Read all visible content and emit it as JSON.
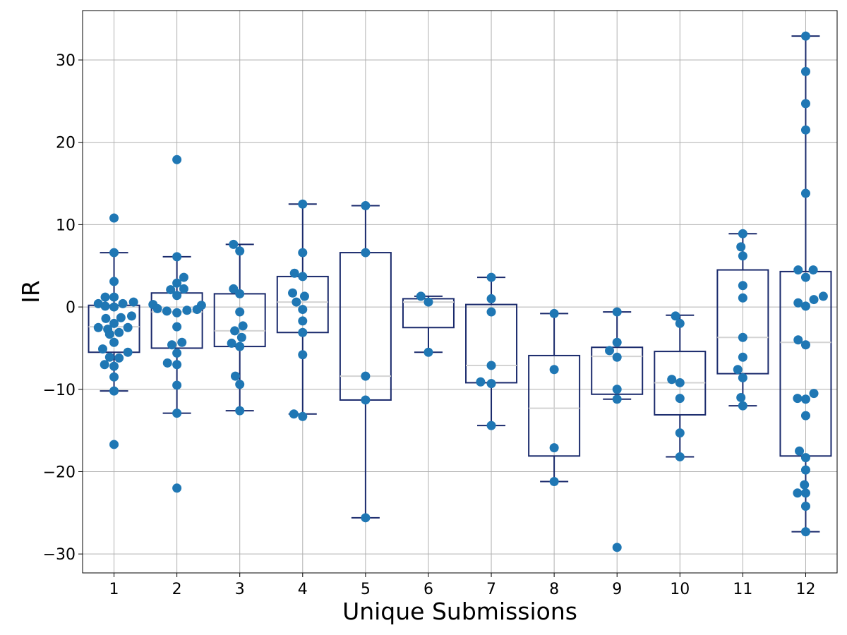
{
  "chart_data": {
    "type": "box",
    "xlabel": "Unique Submissions",
    "ylabel": "IR",
    "categories": [
      "1",
      "2",
      "3",
      "4",
      "5",
      "6",
      "7",
      "8",
      "9",
      "10",
      "11",
      "12"
    ],
    "ylim": [
      -32.3,
      36.0
    ],
    "yticks": [
      -30,
      -20,
      -10,
      0,
      10,
      20,
      30
    ],
    "ytick_labels": [
      "−30",
      "−20",
      "−10",
      "0",
      "10",
      "20",
      "30"
    ],
    "grid": true,
    "colors": {
      "box": "#1a2a6c",
      "median": "#d3d3d3",
      "points": "#1f77b4",
      "grid": "#b0b0b0"
    },
    "boxes": [
      {
        "q1": -5.5,
        "median": -2.4,
        "q3": 0.2,
        "whisker_low": -10.2,
        "whisker_high": 6.6
      },
      {
        "q1": -5.0,
        "median": -0.6,
        "q3": 1.7,
        "whisker_low": -12.9,
        "whisker_high": 6.1
      },
      {
        "q1": -4.8,
        "median": -2.9,
        "q3": 1.6,
        "whisker_low": -12.6,
        "whisker_high": 7.6
      },
      {
        "q1": -3.1,
        "median": 0.6,
        "q3": 3.7,
        "whisker_low": -13.0,
        "whisker_high": 12.5
      },
      {
        "q1": -11.3,
        "median": -8.4,
        "q3": 6.6,
        "whisker_low": -25.6,
        "whisker_high": 12.3
      },
      {
        "q1": -2.5,
        "median": 0.6,
        "q3": 1.0,
        "whisker_low": -5.5,
        "whisker_high": 1.3
      },
      {
        "q1": -9.2,
        "median": -7.1,
        "q3": 0.3,
        "whisker_low": -14.4,
        "whisker_high": 3.6
      },
      {
        "q1": -18.1,
        "median": -12.3,
        "q3": -5.9,
        "whisker_low": -21.2,
        "whisker_high": -0.8
      },
      {
        "q1": -10.6,
        "median": -6.0,
        "q3": -4.9,
        "whisker_low": -11.2,
        "whisker_high": -0.6
      },
      {
        "q1": -13.1,
        "median": -9.2,
        "q3": -5.4,
        "whisker_low": -18.2,
        "whisker_high": -1.0
      },
      {
        "q1": -8.1,
        "median": -3.7,
        "q3": 4.5,
        "whisker_low": -12.0,
        "whisker_high": 8.9
      },
      {
        "q1": -18.1,
        "median": -4.3,
        "q3": 4.3,
        "whisker_low": -27.3,
        "whisker_high": 32.9
      }
    ],
    "points": [
      [
        {
          "x": 1,
          "y": 10.8
        },
        {
          "x": 1,
          "y": 6.6
        },
        {
          "x": 1,
          "y": 3.1
        },
        {
          "x": 0.86,
          "y": 1.2
        },
        {
          "x": 1,
          "y": 1.2
        },
        {
          "x": 0.75,
          "y": 0.4
        },
        {
          "x": 1.14,
          "y": 0.4
        },
        {
          "x": 1.31,
          "y": 0.6
        },
        {
          "x": 0.86,
          "y": 0.1
        },
        {
          "x": 1,
          "y": 0.0
        },
        {
          "x": 0.87,
          "y": -1.4
        },
        {
          "x": 1.11,
          "y": -1.3
        },
        {
          "x": 1.28,
          "y": -1.1
        },
        {
          "x": 1,
          "y": -2.0
        },
        {
          "x": 0.75,
          "y": -2.5
        },
        {
          "x": 0.9,
          "y": -2.7
        },
        {
          "x": 1.22,
          "y": -2.5
        },
        {
          "x": 0.93,
          "y": -3.3
        },
        {
          "x": 1.08,
          "y": -3.1
        },
        {
          "x": 1,
          "y": -4.3
        },
        {
          "x": 0.82,
          "y": -5.1
        },
        {
          "x": 1.22,
          "y": -5.5
        },
        {
          "x": 0.93,
          "y": -6.1
        },
        {
          "x": 1.08,
          "y": -6.2
        },
        {
          "x": 0.85,
          "y": -7.0
        },
        {
          "x": 1,
          "y": -7.2
        },
        {
          "x": 1,
          "y": -8.5
        },
        {
          "x": 1,
          "y": -10.2
        },
        {
          "x": 1,
          "y": -16.7
        }
      ],
      [
        {
          "x": 2,
          "y": 17.9
        },
        {
          "x": 2,
          "y": 6.1
        },
        {
          "x": 2.11,
          "y": 3.6
        },
        {
          "x": 2,
          "y": 2.9
        },
        {
          "x": 1.9,
          "y": 2.1
        },
        {
          "x": 2.11,
          "y": 2.2
        },
        {
          "x": 2,
          "y": 1.4
        },
        {
          "x": 1.62,
          "y": 0.3
        },
        {
          "x": 2.39,
          "y": 0.2
        },
        {
          "x": 1.69,
          "y": -0.2
        },
        {
          "x": 2.32,
          "y": -0.3
        },
        {
          "x": 1.84,
          "y": -0.5
        },
        {
          "x": 2.16,
          "y": -0.4
        },
        {
          "x": 2,
          "y": -0.7
        },
        {
          "x": 2,
          "y": -2.4
        },
        {
          "x": 1.92,
          "y": -4.6
        },
        {
          "x": 2.08,
          "y": -4.3
        },
        {
          "x": 2,
          "y": -5.6
        },
        {
          "x": 1.85,
          "y": -6.8
        },
        {
          "x": 2,
          "y": -7.0
        },
        {
          "x": 2,
          "y": -9.5
        },
        {
          "x": 2,
          "y": -12.9
        },
        {
          "x": 2,
          "y": -22.0
        }
      ],
      [
        {
          "x": 2.9,
          "y": 7.6
        },
        {
          "x": 3,
          "y": 6.8
        },
        {
          "x": 2.9,
          "y": 2.2
        },
        {
          "x": 3,
          "y": 1.6
        },
        {
          "x": 3,
          "y": -0.6
        },
        {
          "x": 3.05,
          "y": -2.3
        },
        {
          "x": 2.92,
          "y": -2.9
        },
        {
          "x": 3.03,
          "y": -3.7
        },
        {
          "x": 2.87,
          "y": -4.4
        },
        {
          "x": 3,
          "y": -4.8
        },
        {
          "x": 2.93,
          "y": -8.4
        },
        {
          "x": 3,
          "y": -9.4
        },
        {
          "x": 3,
          "y": -12.6
        }
      ],
      [
        {
          "x": 4,
          "y": 12.5
        },
        {
          "x": 4,
          "y": 6.6
        },
        {
          "x": 3.87,
          "y": 4.1
        },
        {
          "x": 4,
          "y": 3.7
        },
        {
          "x": 3.84,
          "y": 1.7
        },
        {
          "x": 4.03,
          "y": 1.3
        },
        {
          "x": 3.9,
          "y": 0.6
        },
        {
          "x": 4,
          "y": -0.3
        },
        {
          "x": 4,
          "y": -1.7
        },
        {
          "x": 4,
          "y": -3.1
        },
        {
          "x": 4,
          "y": -5.8
        },
        {
          "x": 3.86,
          "y": -13.0
        },
        {
          "x": 4,
          "y": -13.3
        }
      ],
      [
        {
          "x": 5,
          "y": 12.3
        },
        {
          "x": 5,
          "y": 6.6
        },
        {
          "x": 5,
          "y": -8.4
        },
        {
          "x": 5,
          "y": -11.3
        },
        {
          "x": 5,
          "y": -25.6
        }
      ],
      [
        {
          "x": 5.88,
          "y": 1.3
        },
        {
          "x": 6,
          "y": 0.6
        },
        {
          "x": 6,
          "y": -5.5
        }
      ],
      [
        {
          "x": 7,
          "y": 3.6
        },
        {
          "x": 7,
          "y": 1.0
        },
        {
          "x": 7,
          "y": -0.6
        },
        {
          "x": 7,
          "y": -7.1
        },
        {
          "x": 6.83,
          "y": -9.1
        },
        {
          "x": 7,
          "y": -9.3
        },
        {
          "x": 7,
          "y": -14.4
        }
      ],
      [
        {
          "x": 8,
          "y": -0.8
        },
        {
          "x": 8,
          "y": -7.6
        },
        {
          "x": 8,
          "y": -17.1
        },
        {
          "x": 8,
          "y": -21.2
        }
      ],
      [
        {
          "x": 9,
          "y": -0.6
        },
        {
          "x": 9,
          "y": -4.3
        },
        {
          "x": 8.88,
          "y": -5.3
        },
        {
          "x": 9,
          "y": -6.1
        },
        {
          "x": 9,
          "y": -10.0
        },
        {
          "x": 9,
          "y": -11.2
        },
        {
          "x": 9,
          "y": -29.2
        }
      ],
      [
        {
          "x": 9.93,
          "y": -1.1
        },
        {
          "x": 10,
          "y": -2.0
        },
        {
          "x": 9.87,
          "y": -8.8
        },
        {
          "x": 10,
          "y": -9.2
        },
        {
          "x": 10,
          "y": -11.1
        },
        {
          "x": 10,
          "y": -15.3
        },
        {
          "x": 10,
          "y": -18.2
        }
      ],
      [
        {
          "x": 11,
          "y": 8.9
        },
        {
          "x": 10.97,
          "y": 7.3
        },
        {
          "x": 11,
          "y": 6.2
        },
        {
          "x": 11,
          "y": 2.6
        },
        {
          "x": 11,
          "y": 1.1
        },
        {
          "x": 11,
          "y": -3.7
        },
        {
          "x": 11,
          "y": -6.1
        },
        {
          "x": 10.92,
          "y": -7.6
        },
        {
          "x": 11,
          "y": -8.6
        },
        {
          "x": 10.97,
          "y": -11.0
        },
        {
          "x": 11,
          "y": -12.0
        }
      ],
      [
        {
          "x": 12,
          "y": 32.9
        },
        {
          "x": 12,
          "y": 28.6
        },
        {
          "x": 12,
          "y": 24.7
        },
        {
          "x": 12,
          "y": 21.5
        },
        {
          "x": 12,
          "y": 13.8
        },
        {
          "x": 11.88,
          "y": 4.5
        },
        {
          "x": 12.12,
          "y": 4.5
        },
        {
          "x": 12,
          "y": 3.6
        },
        {
          "x": 12.28,
          "y": 1.3
        },
        {
          "x": 12.13,
          "y": 0.9
        },
        {
          "x": 11.88,
          "y": 0.5
        },
        {
          "x": 12,
          "y": 0.1
        },
        {
          "x": 11.88,
          "y": -4.0
        },
        {
          "x": 12,
          "y": -4.6
        },
        {
          "x": 12.13,
          "y": -10.5
        },
        {
          "x": 11.87,
          "y": -11.1
        },
        {
          "x": 12,
          "y": -11.2
        },
        {
          "x": 12,
          "y": -13.2
        },
        {
          "x": 11.9,
          "y": -17.5
        },
        {
          "x": 12,
          "y": -18.3
        },
        {
          "x": 12,
          "y": -19.8
        },
        {
          "x": 11.98,
          "y": -21.6
        },
        {
          "x": 11.87,
          "y": -22.6
        },
        {
          "x": 12,
          "y": -22.6
        },
        {
          "x": 12,
          "y": -24.2
        },
        {
          "x": 12,
          "y": -27.3
        }
      ]
    ]
  }
}
